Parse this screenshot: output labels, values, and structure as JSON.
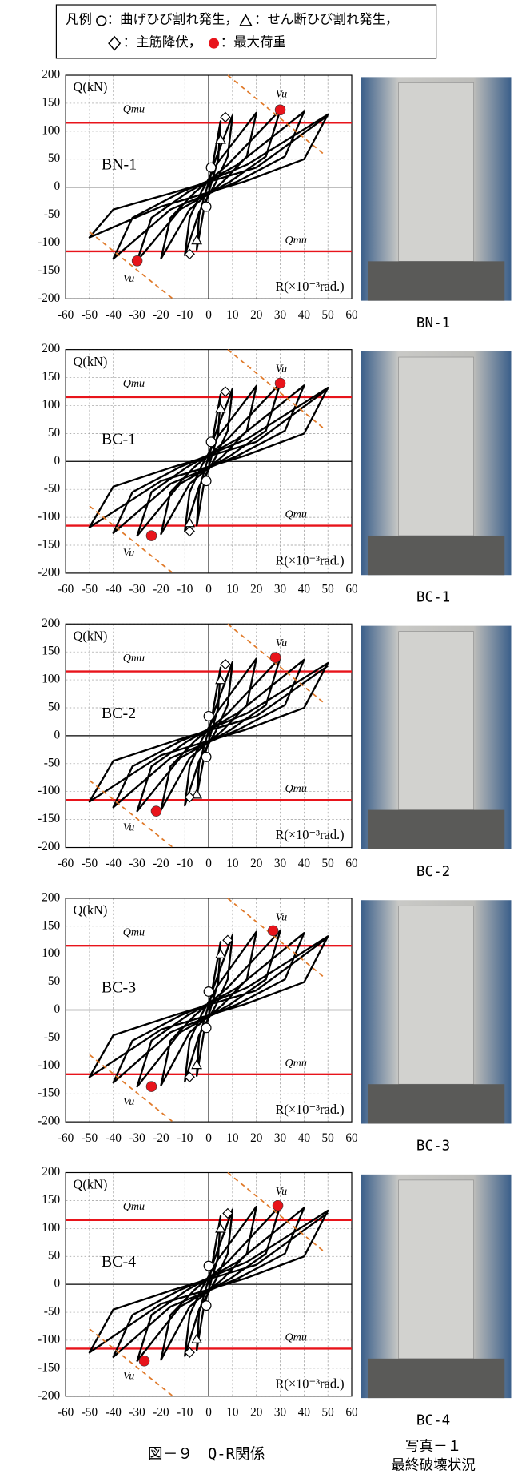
{
  "legend": {
    "title": "凡例",
    "items": [
      "：曲げひび割れ発生，",
      "：せん断ひび割れ発生，",
      "：主筋降伏，",
      "：最大荷重"
    ]
  },
  "chart_data": [
    {
      "type": "line",
      "label": "BN-1",
      "ylabel": "Q(kN)",
      "xlabel": "R(×10⁻³rad.)",
      "qmu": "Qmu",
      "vu": "Vu",
      "xlim": [
        -60,
        60
      ],
      "ylim": [
        -200,
        200
      ],
      "xticks": [
        -60,
        -50,
        -40,
        -30,
        -20,
        -10,
        0,
        10,
        20,
        30,
        40,
        50,
        60
      ],
      "yticks": [
        -200,
        -150,
        -100,
        -50,
        0,
        50,
        100,
        150,
        200
      ],
      "grid": true,
      "hlines": [
        115,
        -115
      ],
      "hline_color": "#e8141b",
      "series": [
        {
          "color": "#000000",
          "style": "solid",
          "marker": "none",
          "x": [
            0,
            5,
            4,
            1,
            -2,
            -5,
            -4,
            -1,
            2,
            10,
            8,
            3,
            -4,
            -10,
            -8,
            -3,
            4,
            20,
            16,
            6,
            -8,
            -20,
            -16,
            -6,
            8,
            30,
            24,
            9,
            -12,
            -30,
            -24,
            -9,
            12,
            40,
            32,
            12,
            -16,
            -40,
            -32,
            -12,
            16,
            50,
            40,
            15,
            -20,
            -50,
            -40,
            -15,
            20,
            50
          ],
          "values": [
            0,
            118,
            50,
            5,
            -40,
            -112,
            -50,
            -5,
            40,
            128,
            55,
            8,
            -45,
            -122,
            -55,
            -8,
            45,
            133,
            55,
            10,
            -40,
            -128,
            -55,
            -10,
            40,
            138,
            55,
            10,
            -40,
            -132,
            -55,
            -10,
            40,
            135,
            55,
            10,
            -40,
            -128,
            -55,
            -10,
            40,
            130,
            50,
            10,
            -35,
            -90,
            -40,
            -10,
            35,
            128
          ]
        },
        {
          "color": "#e07a2a",
          "style": "dashed",
          "marker": "none",
          "x": [
            8,
            48
          ],
          "values": [
            200,
            60
          ]
        },
        {
          "color": "#e07a2a",
          "style": "dashed",
          "marker": "none",
          "x": [
            -50,
            -15
          ],
          "values": [
            -80,
            -200
          ]
        },
        {
          "color": "#000000",
          "marker": "circle",
          "x": [
            1,
            -1
          ],
          "values": [
            35,
            -35
          ]
        },
        {
          "color": "#000000",
          "marker": "triangle",
          "x": [
            5,
            -5
          ],
          "values": [
            85,
            -95
          ]
        },
        {
          "color": "#000000",
          "marker": "diamond",
          "x": [
            7,
            -8
          ],
          "values": [
            125,
            -120
          ]
        },
        {
          "color": "#e8141b",
          "marker": "dot",
          "x": [
            30,
            -30
          ],
          "values": [
            138,
            -132
          ]
        }
      ]
    },
    {
      "type": "line",
      "label": "BC-1",
      "ylabel": "Q(kN)",
      "xlabel": "R(×10⁻³rad.)",
      "qmu": "Qmu",
      "vu": "Vu",
      "xlim": [
        -60,
        60
      ],
      "ylim": [
        -200,
        200
      ],
      "xticks": [
        -60,
        -50,
        -40,
        -30,
        -20,
        -10,
        0,
        10,
        20,
        30,
        40,
        50,
        60
      ],
      "yticks": [
        -200,
        -150,
        -100,
        -50,
        0,
        50,
        100,
        150,
        200
      ],
      "grid": true,
      "hlines": [
        115,
        -115
      ],
      "hline_color": "#e8141b",
      "series": [
        {
          "color": "#000000",
          "style": "solid",
          "marker": "none",
          "x": [
            0,
            5,
            4,
            1,
            -2,
            -5,
            -4,
            -1,
            2,
            10,
            8,
            3,
            -4,
            -10,
            -8,
            -3,
            4,
            20,
            16,
            6,
            -8,
            -20,
            -16,
            -6,
            8,
            30,
            24,
            9,
            -12,
            -30,
            -24,
            -9,
            12,
            40,
            32,
            12,
            -16,
            -40,
            -32,
            -12,
            16,
            50,
            40,
            15,
            -20,
            -50,
            -40,
            -15,
            20,
            50
          ],
          "values": [
            0,
            120,
            50,
            5,
            -40,
            -115,
            -50,
            -5,
            40,
            130,
            55,
            8,
            -45,
            -125,
            -55,
            -8,
            45,
            135,
            55,
            10,
            -40,
            -130,
            -55,
            -10,
            40,
            140,
            55,
            10,
            -40,
            -133,
            -55,
            -10,
            40,
            136,
            55,
            10,
            -40,
            -128,
            -55,
            -10,
            40,
            132,
            50,
            10,
            -35,
            -118,
            -45,
            -10,
            35,
            130
          ]
        },
        {
          "color": "#e07a2a",
          "style": "dashed",
          "marker": "none",
          "x": [
            8,
            48
          ],
          "values": [
            200,
            60
          ]
        },
        {
          "color": "#e07a2a",
          "style": "dashed",
          "marker": "none",
          "x": [
            -50,
            -15
          ],
          "values": [
            -80,
            -200
          ]
        },
        {
          "color": "#000000",
          "marker": "circle",
          "x": [
            1,
            -1
          ],
          "values": [
            35,
            -35
          ]
        },
        {
          "color": "#000000",
          "marker": "triangle",
          "x": [
            5,
            -8
          ],
          "values": [
            95,
            -110
          ]
        },
        {
          "color": "#000000",
          "marker": "diamond",
          "x": [
            7,
            -8
          ],
          "values": [
            125,
            -125
          ]
        },
        {
          "color": "#e8141b",
          "marker": "dot",
          "x": [
            30,
            -24
          ],
          "values": [
            140,
            -133
          ]
        }
      ]
    },
    {
      "type": "line",
      "label": "BC-2",
      "ylabel": "Q(kN)",
      "xlabel": "R(×10⁻³rad.)",
      "qmu": "Qmu",
      "vu": "Vu",
      "xlim": [
        -60,
        60
      ],
      "ylim": [
        -200,
        200
      ],
      "xticks": [
        -60,
        -50,
        -40,
        -30,
        -20,
        -10,
        0,
        10,
        20,
        30,
        40,
        50,
        60
      ],
      "yticks": [
        -200,
        -150,
        -100,
        -50,
        0,
        50,
        100,
        150,
        200
      ],
      "grid": true,
      "hlines": [
        115,
        -115
      ],
      "hline_color": "#e8141b",
      "series": [
        {
          "color": "#000000",
          "style": "solid",
          "marker": "none",
          "x": [
            0,
            5,
            4,
            1,
            -2,
            -5,
            -4,
            -1,
            2,
            10,
            8,
            3,
            -4,
            -10,
            -8,
            -3,
            4,
            20,
            16,
            6,
            -8,
            -20,
            -16,
            -6,
            8,
            30,
            24,
            9,
            -12,
            -30,
            -24,
            -9,
            12,
            40,
            32,
            12,
            -16,
            -40,
            -32,
            -12,
            16,
            50,
            40,
            15,
            -20,
            -50,
            -40,
            -15,
            20,
            50
          ],
          "values": [
            0,
            122,
            50,
            5,
            -40,
            -108,
            -50,
            -5,
            40,
            132,
            55,
            8,
            -45,
            -125,
            -55,
            -8,
            45,
            138,
            55,
            10,
            -40,
            -133,
            -55,
            -10,
            40,
            140,
            55,
            10,
            -40,
            -135,
            -55,
            -10,
            40,
            136,
            55,
            10,
            -40,
            -128,
            -55,
            -10,
            40,
            130,
            50,
            10,
            -35,
            -118,
            -45,
            -10,
            35,
            125
          ]
        },
        {
          "color": "#e07a2a",
          "style": "dashed",
          "marker": "none",
          "x": [
            8,
            48
          ],
          "values": [
            200,
            60
          ]
        },
        {
          "color": "#e07a2a",
          "style": "dashed",
          "marker": "none",
          "x": [
            -50,
            -15
          ],
          "values": [
            -80,
            -200
          ]
        },
        {
          "color": "#000000",
          "marker": "circle",
          "x": [
            0,
            -1
          ],
          "values": [
            35,
            -38
          ]
        },
        {
          "color": "#000000",
          "marker": "triangle",
          "x": [
            5,
            -5
          ],
          "values": [
            100,
            -105
          ]
        },
        {
          "color": "#000000",
          "marker": "diamond",
          "x": [
            7,
            -8
          ],
          "values": [
            128,
            -110
          ]
        },
        {
          "color": "#e8141b",
          "marker": "dot",
          "x": [
            28,
            -22
          ],
          "values": [
            140,
            -135
          ]
        }
      ]
    },
    {
      "type": "line",
      "label": "BC-3",
      "ylabel": "Q(kN)",
      "xlabel": "R(×10⁻³rad.)",
      "qmu": "Qmu",
      "vu": "Vu",
      "xlim": [
        -60,
        60
      ],
      "ylim": [
        -200,
        200
      ],
      "xticks": [
        -60,
        -50,
        -40,
        -30,
        -20,
        -10,
        0,
        10,
        20,
        30,
        40,
        50,
        60
      ],
      "yticks": [
        -200,
        -150,
        -100,
        -50,
        0,
        50,
        100,
        150,
        200
      ],
      "grid": true,
      "hlines": [
        115,
        -115
      ],
      "hline_color": "#e8141b",
      "series": [
        {
          "color": "#000000",
          "style": "solid",
          "marker": "none",
          "x": [
            0,
            5,
            4,
            1,
            -2,
            -5,
            -4,
            -1,
            2,
            10,
            8,
            3,
            -4,
            -10,
            -8,
            -3,
            4,
            20,
            16,
            6,
            -8,
            -20,
            -16,
            -6,
            8,
            30,
            24,
            9,
            -12,
            -30,
            -24,
            -9,
            12,
            40,
            32,
            12,
            -16,
            -40,
            -32,
            -12,
            16,
            50,
            40,
            15,
            -20,
            -50,
            -40,
            -15,
            20,
            50
          ],
          "values": [
            0,
            122,
            50,
            5,
            -40,
            -118,
            -50,
            -5,
            40,
            134,
            55,
            8,
            -45,
            -128,
            -55,
            -8,
            45,
            140,
            55,
            10,
            -40,
            -135,
            -55,
            -10,
            40,
            142,
            55,
            10,
            -40,
            -137,
            -55,
            -10,
            40,
            138,
            55,
            10,
            -40,
            -130,
            -55,
            -10,
            40,
            132,
            50,
            10,
            -35,
            -120,
            -45,
            -10,
            35,
            130
          ]
        },
        {
          "color": "#e07a2a",
          "style": "dashed",
          "marker": "none",
          "x": [
            8,
            48
          ],
          "values": [
            200,
            60
          ]
        },
        {
          "color": "#e07a2a",
          "style": "dashed",
          "marker": "none",
          "x": [
            -50,
            -15
          ],
          "values": [
            -80,
            -200
          ]
        },
        {
          "color": "#000000",
          "marker": "circle",
          "x": [
            0,
            -1
          ],
          "values": [
            33,
            -32
          ]
        },
        {
          "color": "#000000",
          "marker": "triangle",
          "x": [
            5,
            -5
          ],
          "values": [
            100,
            -98
          ]
        },
        {
          "color": "#000000",
          "marker": "diamond",
          "x": [
            8,
            -8
          ],
          "values": [
            125,
            -120
          ]
        },
        {
          "color": "#e8141b",
          "marker": "dot",
          "x": [
            27,
            -24
          ],
          "values": [
            142,
            -137
          ]
        }
      ]
    },
    {
      "type": "line",
      "label": "BC-4",
      "ylabel": "Q(kN)",
      "xlabel": "R(×10⁻³rad.)",
      "qmu": "Qmu",
      "vu": "Vu",
      "xlim": [
        -60,
        60
      ],
      "ylim": [
        -200,
        200
      ],
      "xticks": [
        -60,
        -50,
        -40,
        -30,
        -20,
        -10,
        0,
        10,
        20,
        30,
        40,
        50,
        60
      ],
      "yticks": [
        -200,
        -150,
        -100,
        -50,
        0,
        50,
        100,
        150,
        200
      ],
      "grid": true,
      "hlines": [
        115,
        -115
      ],
      "hline_color": "#e8141b",
      "series": [
        {
          "color": "#000000",
          "style": "solid",
          "marker": "none",
          "x": [
            0,
            5,
            4,
            1,
            -2,
            -5,
            -4,
            -1,
            2,
            10,
            8,
            3,
            -4,
            -10,
            -8,
            -3,
            4,
            20,
            16,
            6,
            -8,
            -20,
            -16,
            -6,
            8,
            30,
            24,
            9,
            -12,
            -30,
            -24,
            -9,
            12,
            40,
            32,
            12,
            -16,
            -40,
            -32,
            -12,
            16,
            50,
            40,
            15,
            -20,
            -50,
            -40,
            -15,
            20,
            50
          ],
          "values": [
            0,
            122,
            50,
            5,
            -40,
            -118,
            -50,
            -5,
            40,
            134,
            55,
            8,
            -45,
            -128,
            -55,
            -8,
            45,
            139,
            55,
            10,
            -40,
            -135,
            -55,
            -10,
            40,
            141,
            55,
            10,
            -40,
            -137,
            -55,
            -10,
            40,
            137,
            55,
            10,
            -40,
            -130,
            -55,
            -10,
            40,
            132,
            50,
            10,
            -35,
            -122,
            -45,
            -10,
            35,
            128
          ]
        },
        {
          "color": "#e07a2a",
          "style": "dashed",
          "marker": "none",
          "x": [
            8,
            48
          ],
          "values": [
            200,
            60
          ]
        },
        {
          "color": "#e07a2a",
          "style": "dashed",
          "marker": "none",
          "x": [
            -50,
            -15
          ],
          "values": [
            -80,
            -200
          ]
        },
        {
          "color": "#000000",
          "marker": "circle",
          "x": [
            0,
            -1
          ],
          "values": [
            33,
            -38
          ]
        },
        {
          "color": "#000000",
          "marker": "triangle",
          "x": [
            5,
            -5
          ],
          "values": [
            100,
            -98
          ]
        },
        {
          "color": "#000000",
          "marker": "diamond",
          "x": [
            8,
            -8
          ],
          "values": [
            127,
            -122
          ]
        },
        {
          "color": "#e8141b",
          "marker": "dot",
          "x": [
            29,
            -27
          ],
          "values": [
            141,
            -137
          ]
        }
      ]
    }
  ],
  "photos": [
    "BN-1",
    "BC-1",
    "BC-2",
    "BC-3",
    "BC-4"
  ],
  "figure_caption": "図－９　Q-R関係",
  "photo_caption": [
    "写真－１",
    "最終破壊状況"
  ]
}
